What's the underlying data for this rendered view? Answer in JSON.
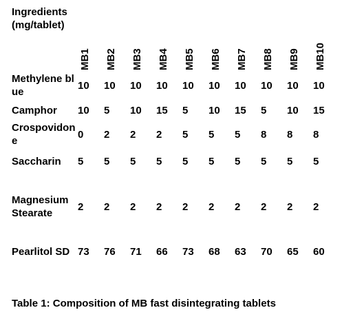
{
  "table": {
    "header": {
      "ingredients": "Ingredients (mg/tablet)",
      "batches": [
        "MB1",
        "MB2",
        "MB3",
        "MB4",
        "MB5",
        "MB6",
        "MB7",
        "MB8",
        "MB9",
        "MB10"
      ]
    },
    "rows": [
      {
        "label": "Methylene blue",
        "values": [
          "10",
          "10",
          "10",
          "10",
          "10",
          "10",
          "10",
          "10",
          "10",
          "10"
        ]
      },
      {
        "label": "Camphor",
        "values": [
          "10",
          "5",
          "10",
          "15",
          "5",
          "10",
          "15",
          "5",
          "10",
          "15"
        ]
      },
      {
        "label": "Crospovidone",
        "values": [
          "0",
          "2",
          "2",
          "2",
          "5",
          "5",
          "5",
          "8",
          "8",
          "8"
        ]
      },
      {
        "label": "Saccharin",
        "values": [
          "5",
          "5",
          "5",
          "5",
          "5",
          "5",
          "5",
          "5",
          "5",
          "5"
        ]
      },
      {
        "label": "Magnesium Stearate",
        "values": [
          "2",
          "2",
          "2",
          "2",
          "2",
          "2",
          "2",
          "2",
          "2",
          "2"
        ]
      },
      {
        "label": "Pearlitol SD",
        "values": [
          "73",
          "76",
          "71",
          "66",
          "73",
          "68",
          "63",
          "70",
          "65",
          "60"
        ]
      }
    ]
  },
  "caption": "Table 1: Composition of MB fast disintegrating tablets"
}
